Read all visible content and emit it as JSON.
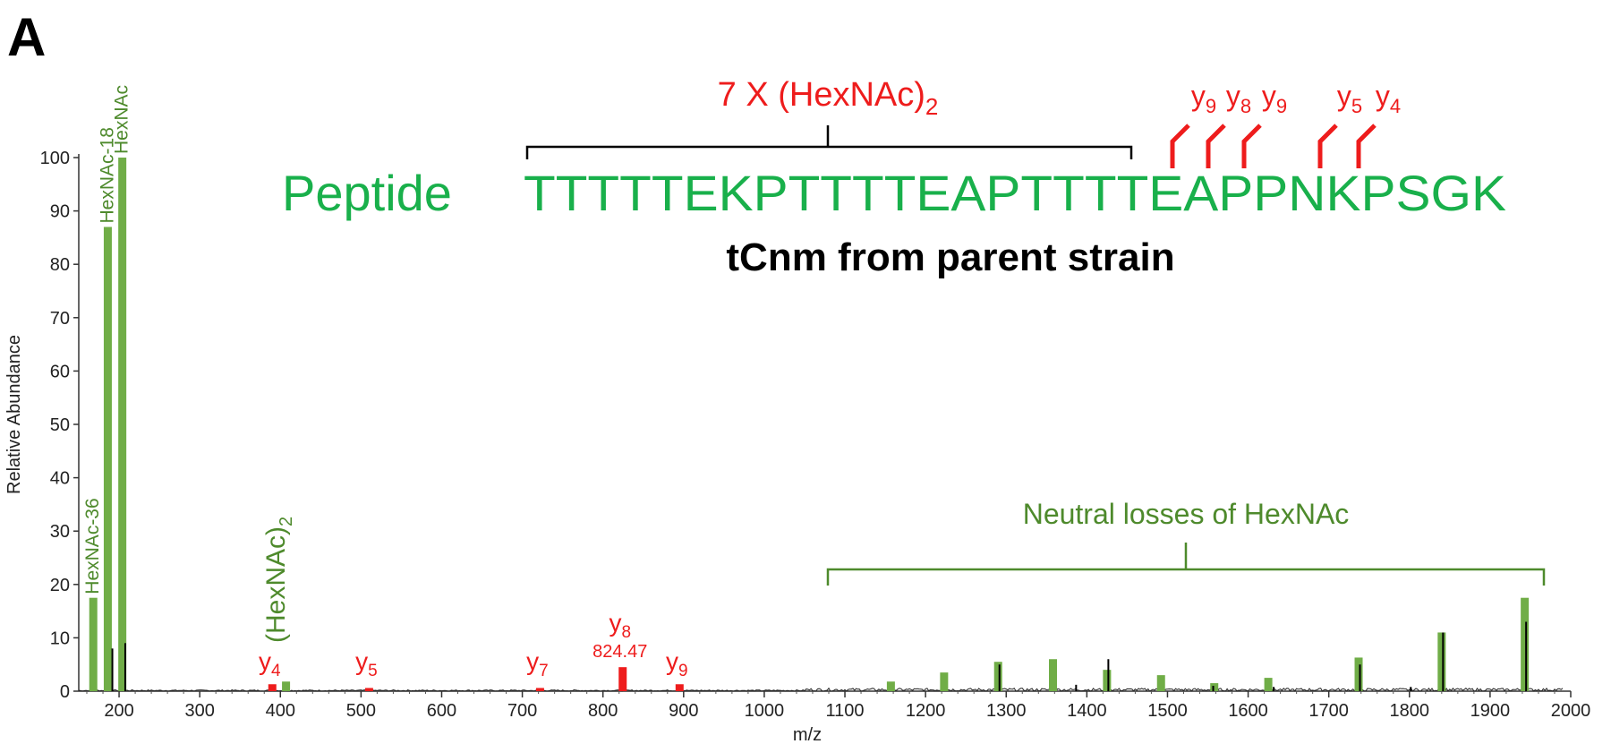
{
  "panel_letter": "A",
  "colors": {
    "green_bar": "#70ad47",
    "green_text": "#4e8a2c",
    "red": "#ee1c1c",
    "sequence": "#19b04b",
    "spectrum": "#000000"
  },
  "chart_data": {
    "type": "bar",
    "xlabel": "m/z",
    "ylabel": "Relative Abundance",
    "xlim": [
      150,
      2000
    ],
    "ylim": [
      0,
      100
    ],
    "x_ticks": [
      200,
      300,
      400,
      500,
      600,
      700,
      800,
      900,
      1000,
      1100,
      1200,
      1300,
      1400,
      1500,
      1600,
      1700,
      1800,
      1900,
      2000
    ],
    "y_ticks": [
      0,
      10,
      20,
      30,
      40,
      50,
      60,
      70,
      80,
      90,
      100
    ],
    "green_peaks": [
      {
        "mz": 168,
        "value": 17.5,
        "label": "HexNAc-36"
      },
      {
        "mz": 186,
        "value": 87,
        "label": "HexNAc-18"
      },
      {
        "mz": 204,
        "value": 100,
        "label": "HexNAc"
      },
      {
        "mz": 407,
        "value": 1.8
      },
      {
        "mz": 1157,
        "value": 1.8
      },
      {
        "mz": 1223,
        "value": 3.5
      },
      {
        "mz": 1290,
        "value": 5.5
      },
      {
        "mz": 1358,
        "value": 6
      },
      {
        "mz": 1425,
        "value": 4
      },
      {
        "mz": 1492,
        "value": 3
      },
      {
        "mz": 1558,
        "value": 1.5
      },
      {
        "mz": 1625,
        "value": 2.5
      },
      {
        "mz": 1737,
        "value": 6.3
      },
      {
        "mz": 1840,
        "value": 11
      },
      {
        "mz": 1943,
        "value": 17.5
      }
    ],
    "red_peaks": [
      {
        "mz": 390,
        "value": 1.3,
        "ion": "y",
        "sub": "4"
      },
      {
        "mz": 510,
        "value": 0.6,
        "ion": "y",
        "sub": "5"
      },
      {
        "mz": 722,
        "value": 0.6,
        "ion": "y",
        "sub": "7"
      },
      {
        "mz": 824.47,
        "value": 4.5,
        "ion": "y",
        "sub": "8",
        "mz_label": "824.47"
      },
      {
        "mz": 895,
        "value": 1.3,
        "ion": "y",
        "sub": "9"
      }
    ],
    "black_peaks": [
      {
        "mz": 190,
        "value": 8
      },
      {
        "mz": 206,
        "value": 9
      },
      {
        "mz": 1290,
        "value": 5
      },
      {
        "mz": 1425,
        "value": 6
      },
      {
        "mz": 1737,
        "value": 5
      },
      {
        "mz": 1840,
        "value": 11
      },
      {
        "mz": 1943,
        "value": 13
      },
      {
        "mz": 1385,
        "value": 1.2
      },
      {
        "mz": 1555,
        "value": 1.0
      },
      {
        "mz": 1630,
        "value": 0.8
      },
      {
        "mz": 1800,
        "value": 0.8
      }
    ],
    "annotations": {
      "hexnac2": {
        "text": "(HexNAc)",
        "sub": "2"
      },
      "neutral_losses": {
        "text": "Neutral losses of HexNAc",
        "range": [
          1070,
          1945
        ]
      }
    }
  },
  "peptide": {
    "label": "Peptide",
    "sequence": "TTTTTEKPTTTTEAPTTTTEAPPNKPSGK",
    "modification": {
      "text": "7 X (HexNAc)",
      "sub": "2"
    },
    "fragment_markers": [
      {
        "ion": "y",
        "sub": "9"
      },
      {
        "ion": "y",
        "sub": "8"
      },
      {
        "ion": "y",
        "sub": "9"
      },
      {
        "ion": "y",
        "sub": "5"
      },
      {
        "ion": "y",
        "sub": "4"
      }
    ],
    "subtitle": "tCnm from parent strain"
  }
}
